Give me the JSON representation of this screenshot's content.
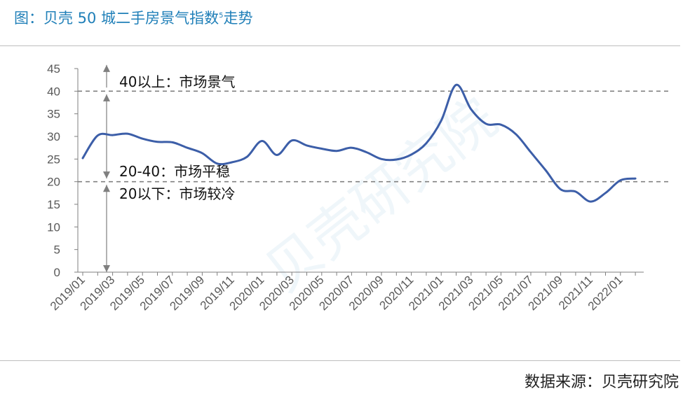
{
  "header": {
    "title_main": "图：贝壳 50 城二手房景气指数",
    "title_sup": "5",
    "title_tail": "走势"
  },
  "footer": {
    "source": "数据来源：贝壳研究院"
  },
  "watermark": "贝壳研究院",
  "colors": {
    "title": "#1f7fb8",
    "line": "#3c5ea8",
    "reference": "#808080",
    "axis": "#7f7f7f"
  },
  "chart_data": {
    "type": "line",
    "title": "",
    "xlabel": "",
    "ylabel": "",
    "ylim": [
      0,
      45
    ],
    "yticks": [
      0,
      5,
      10,
      15,
      20,
      25,
      30,
      35,
      40,
      45
    ],
    "grid": false,
    "x_tick_labels": [
      "2019/01",
      "2019/03",
      "2019/05",
      "2019/07",
      "2019/09",
      "2019/11",
      "2020/01",
      "2020/03",
      "2020/05",
      "2020/07",
      "2020/09",
      "2020/11",
      "2021/01",
      "2021/03",
      "2021/05",
      "2021/07",
      "2021/09",
      "2021/11",
      "2022/01"
    ],
    "x": [
      "2019/01",
      "2019/02",
      "2019/03",
      "2019/04",
      "2019/05",
      "2019/06",
      "2019/07",
      "2019/08",
      "2019/09",
      "2019/10",
      "2019/11",
      "2019/12",
      "2020/01",
      "2020/02",
      "2020/03",
      "2020/04",
      "2020/05",
      "2020/06",
      "2020/07",
      "2020/08",
      "2020/09",
      "2020/10",
      "2020/11",
      "2020/12",
      "2021/01",
      "2021/02",
      "2021/03",
      "2021/04",
      "2021/05",
      "2021/06",
      "2021/07",
      "2021/08",
      "2021/09",
      "2021/10",
      "2021/11",
      "2021/12",
      "2022/01",
      "2022/02"
    ],
    "series": [
      {
        "values": [
          25.2,
          30.2,
          30.3,
          30.6,
          29.5,
          28.8,
          28.7,
          27.5,
          26.3,
          24.0,
          24.3,
          25.5,
          29.0,
          25.9,
          29.1,
          28.0,
          27.3,
          26.8,
          27.5,
          26.5,
          25.0,
          24.9,
          26.0,
          28.5,
          33.5,
          41.4,
          36.0,
          32.8,
          32.6,
          30.5,
          26.5,
          22.5,
          18.3,
          17.8,
          15.6,
          17.5,
          20.3,
          20.7
        ]
      }
    ],
    "reference_lines": [
      40,
      20
    ],
    "annotations": [
      {
        "text": "40以上：市场景气"
      },
      {
        "text": "20-40：市场平稳"
      },
      {
        "text": "20以下：市场较冷"
      }
    ]
  }
}
